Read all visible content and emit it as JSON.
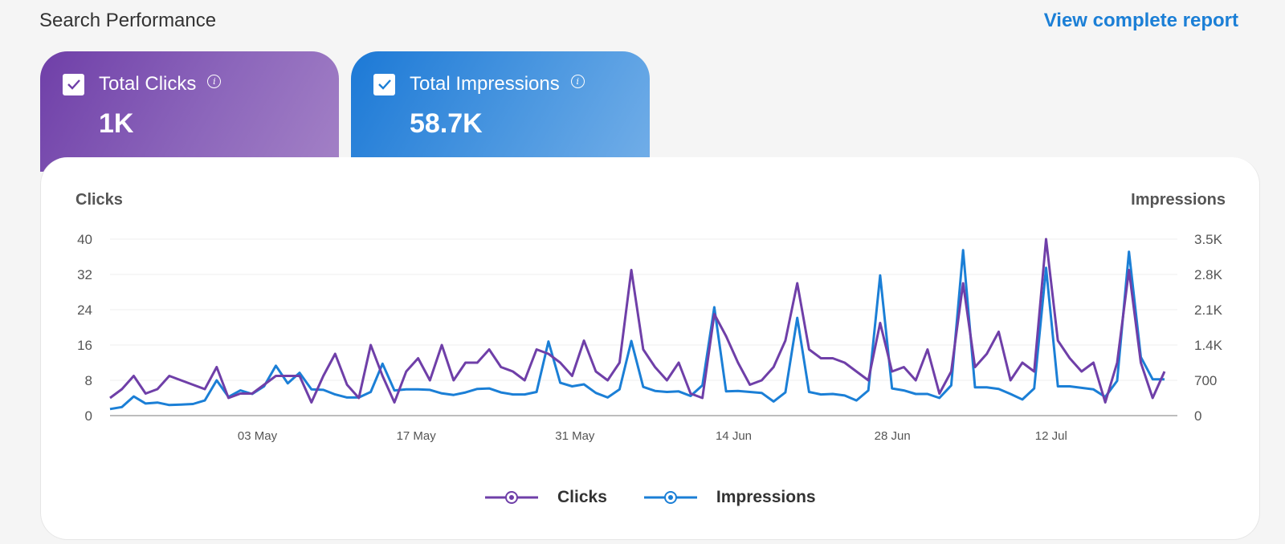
{
  "header": {
    "title": "Search Performance",
    "view_report": "View complete report"
  },
  "cards": {
    "clicks": {
      "label": "Total Clicks",
      "value": "1K",
      "info": "i"
    },
    "impressions": {
      "label": "Total Impressions",
      "value": "58.7K",
      "info": "i"
    }
  },
  "colors": {
    "clicks": "#6f3fa8",
    "impressions": "#1b7fd6"
  },
  "chart_data": {
    "type": "line",
    "left_axis_title": "Clicks",
    "right_axis_title": "Impressions",
    "left_ticks": [
      "0",
      "8",
      "16",
      "24",
      "32",
      "40"
    ],
    "left_ylim": [
      0,
      40
    ],
    "right_ticks": [
      "0",
      "700",
      "1.4K",
      "2.1K",
      "2.8K",
      "3.5K"
    ],
    "right_ylim": [
      0,
      3500
    ],
    "x_start": "20 Apr",
    "x_end": "22 Jul",
    "x_ticks": [
      "03 May",
      "17 May",
      "31 May",
      "14 Jun",
      "28 Jun",
      "12 Jul"
    ],
    "grid": true,
    "legend_position": "bottom",
    "series": [
      {
        "name": "Clicks",
        "axis": "left",
        "color": "#6f3fa8",
        "values": [
          4,
          6,
          9,
          5,
          6,
          9,
          8,
          7,
          6,
          11,
          4,
          5,
          5,
          7,
          9,
          9,
          9,
          3,
          9,
          14,
          7,
          4,
          16,
          9,
          3,
          10,
          13,
          8,
          16,
          8,
          12,
          12,
          15,
          11,
          10,
          8,
          15,
          14,
          12,
          9,
          17,
          10,
          8,
          12,
          33,
          15,
          11,
          8,
          12,
          5,
          4,
          23,
          18,
          12,
          7,
          8,
          11,
          17,
          30,
          15,
          13,
          13,
          12,
          10,
          8,
          21,
          10,
          11,
          8,
          15,
          5,
          10,
          30,
          11,
          14,
          19,
          8,
          12,
          10,
          40,
          17,
          13,
          10,
          12,
          3,
          12,
          33,
          12,
          4,
          10
        ]
      },
      {
        "name": "Impressions",
        "axis": "right",
        "color": "#1b7fd6",
        "values": [
          130,
          170,
          380,
          240,
          260,
          210,
          220,
          230,
          300,
          700,
          370,
          500,
          430,
          580,
          990,
          640,
          850,
          520,
          510,
          420,
          360,
          360,
          470,
          1030,
          500,
          520,
          520,
          510,
          440,
          410,
          460,
          530,
          540,
          460,
          420,
          420,
          470,
          1470,
          650,
          580,
          620,
          450,
          360,
          520,
          1480,
          570,
          490,
          470,
          480,
          390,
          600,
          2150,
          480,
          490,
          470,
          450,
          280,
          460,
          1940,
          470,
          420,
          430,
          400,
          300,
          500,
          2780,
          540,
          500,
          430,
          430,
          350,
          600,
          3280,
          560,
          560,
          530,
          430,
          320,
          540,
          2930,
          580,
          580,
          550,
          520,
          370,
          690,
          3250,
          1160,
          720,
          720
        ]
      }
    ]
  },
  "legend": {
    "clicks": "Clicks",
    "impressions": "Impressions"
  }
}
